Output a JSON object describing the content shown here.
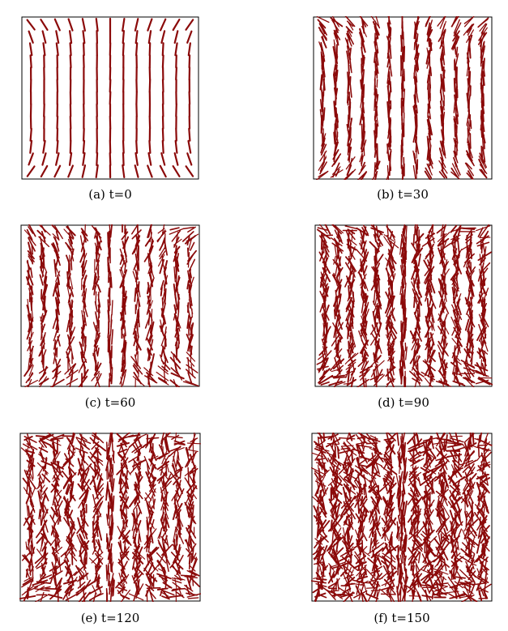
{
  "figure": {
    "panels": [
      {
        "caption": "(a) t=0",
        "t": 0
      },
      {
        "caption": "(b) t=30",
        "t": 30
      },
      {
        "caption": "(c) t=60",
        "t": 60
      },
      {
        "caption": "(d) t=90",
        "t": 90
      },
      {
        "caption": "(e) t=120",
        "t": 120
      },
      {
        "caption": "(f) t=150",
        "t": 150
      }
    ],
    "colors": {
      "director_lines": "#8b0a0a",
      "frame": "#000000",
      "background": "#ffffff"
    },
    "symbol": "director-field-line-segments"
  }
}
